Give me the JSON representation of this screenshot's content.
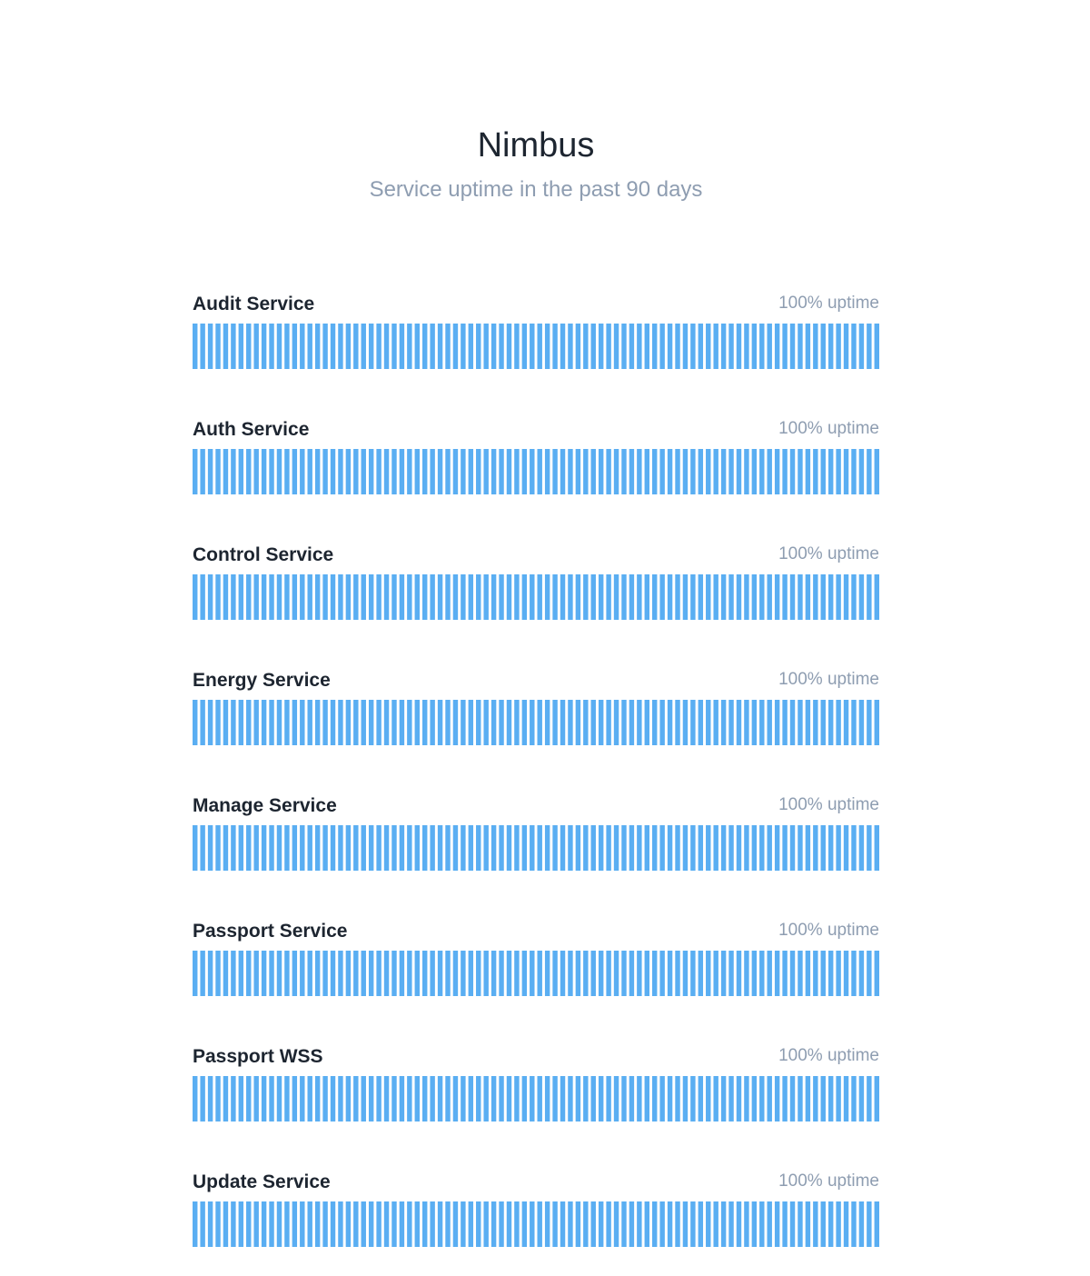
{
  "header": {
    "title": "Nimbus",
    "subtitle": "Service uptime in the past 90 days"
  },
  "bar_color": "#5aaef2",
  "days": 90,
  "services": [
    {
      "name": "Audit Service",
      "uptime_label": "100% uptime",
      "uptime": 100
    },
    {
      "name": "Auth Service",
      "uptime_label": "100% uptime",
      "uptime": 100
    },
    {
      "name": "Control Service",
      "uptime_label": "100% uptime",
      "uptime": 100
    },
    {
      "name": "Energy Service",
      "uptime_label": "100% uptime",
      "uptime": 100
    },
    {
      "name": "Manage Service",
      "uptime_label": "100% uptime",
      "uptime": 100
    },
    {
      "name": "Passport Service",
      "uptime_label": "100% uptime",
      "uptime": 100
    },
    {
      "name": "Passport WSS",
      "uptime_label": "100% uptime",
      "uptime": 100
    },
    {
      "name": "Update Service",
      "uptime_label": "100% uptime",
      "uptime": 100
    }
  ]
}
